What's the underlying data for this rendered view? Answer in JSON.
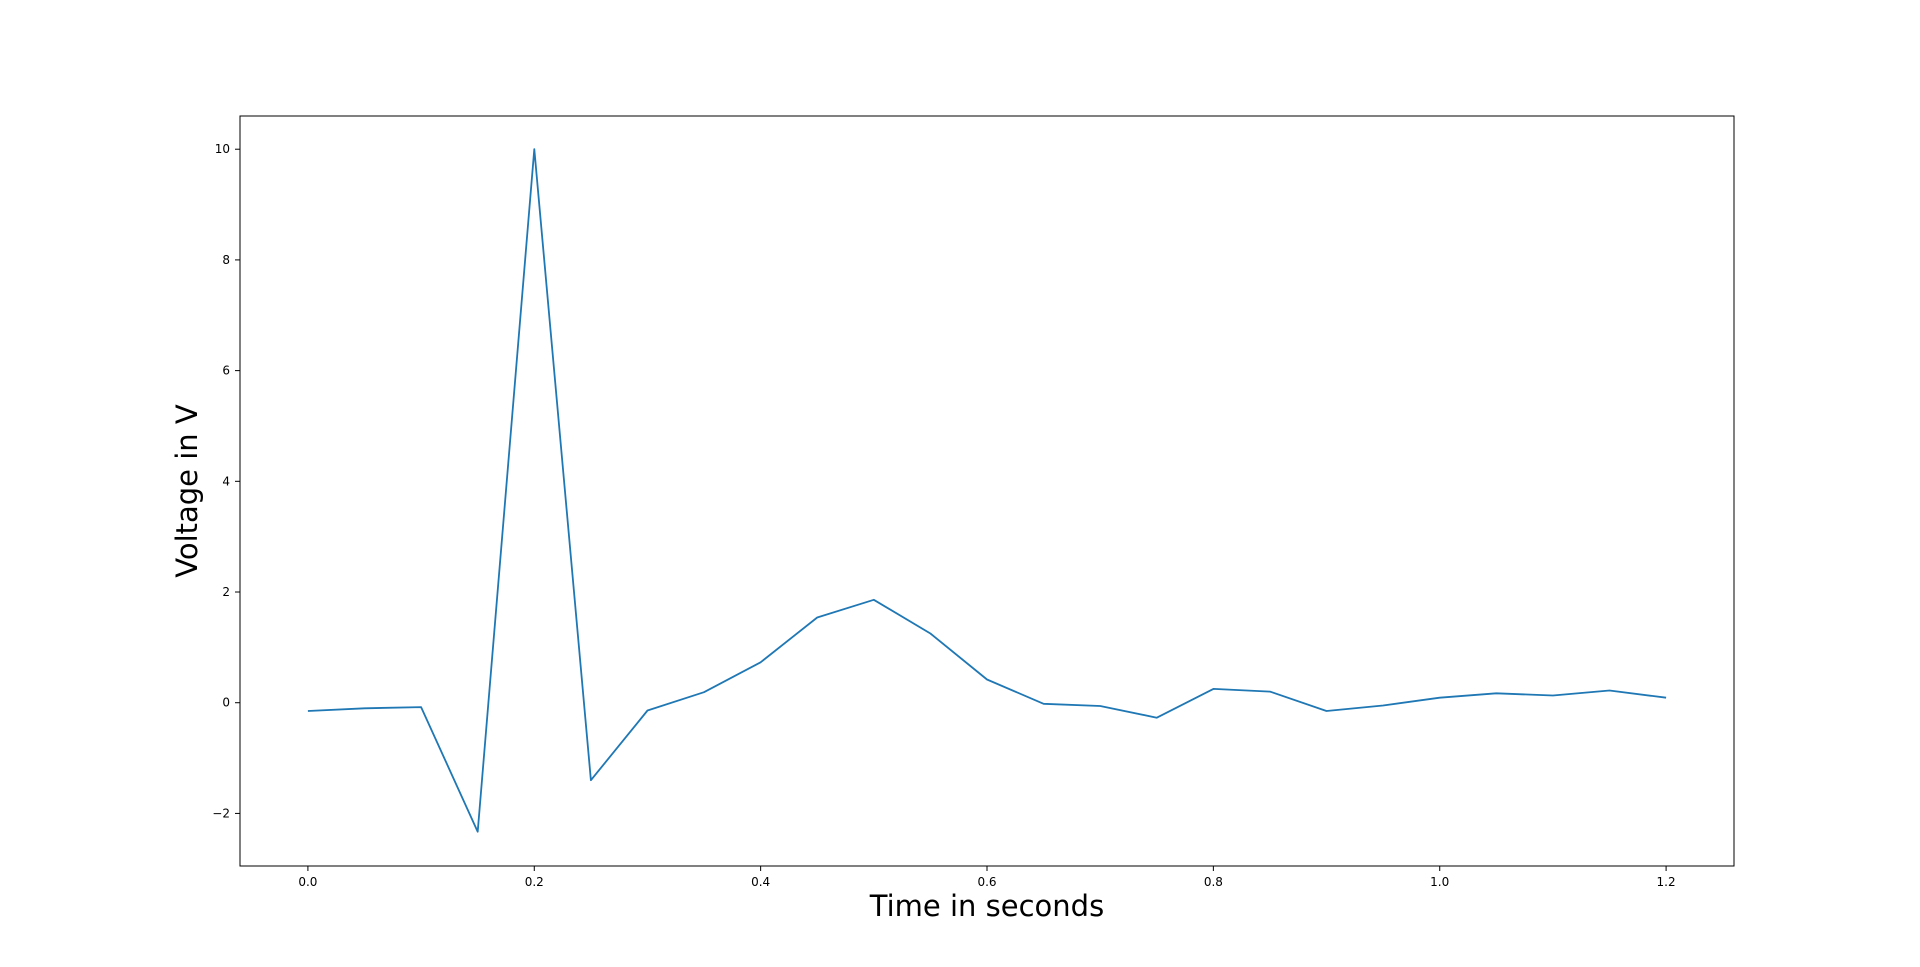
{
  "chart_data": {
    "type": "line",
    "title": "",
    "xlabel": "Time in seconds",
    "ylabel": "Voltage in V",
    "xlim": [
      -0.06,
      1.26
    ],
    "ylim": [
      -2.95,
      10.6
    ],
    "grid": false,
    "legend": "none",
    "x_ticks": [
      0.0,
      0.2,
      0.4,
      0.6,
      0.8,
      1.0,
      1.2
    ],
    "x_tick_labels": [
      "0.0",
      "0.2",
      "0.4",
      "0.6",
      "0.8",
      "1.0",
      "1.2"
    ],
    "y_ticks": [
      -2,
      0,
      2,
      4,
      6,
      8,
      10
    ],
    "y_tick_labels": [
      "−2",
      "0",
      "2",
      "4",
      "6",
      "8",
      "10"
    ],
    "series": [
      {
        "color": "#1f77b4",
        "x": [
          0.0,
          0.05,
          0.1,
          0.15,
          0.2,
          0.25,
          0.3,
          0.35,
          0.4,
          0.45,
          0.5,
          0.55,
          0.6,
          0.65,
          0.7,
          0.75,
          0.8,
          0.85,
          0.9,
          0.95,
          1.0,
          1.05,
          1.1,
          1.15,
          1.2
        ],
        "y": [
          -0.15,
          -0.1,
          -0.08,
          -2.33,
          10.0,
          -1.4,
          -0.14,
          0.19,
          0.73,
          1.54,
          1.86,
          1.25,
          0.42,
          -0.02,
          -0.06,
          -0.27,
          0.25,
          0.2,
          -0.15,
          -0.05,
          0.09,
          0.17,
          0.13,
          0.22,
          0.09
        ]
      }
    ]
  }
}
